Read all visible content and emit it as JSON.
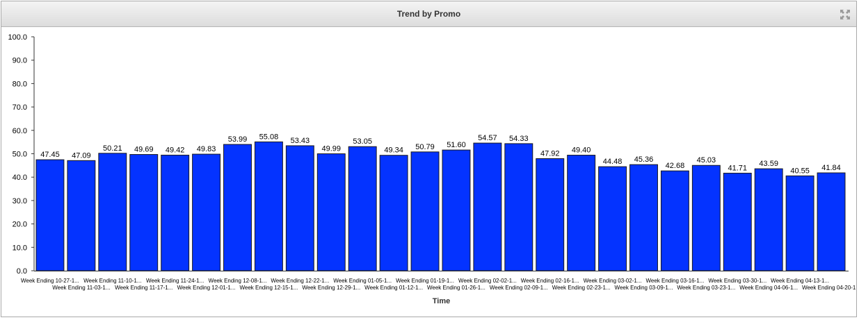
{
  "panel": {
    "title": "Trend by Promo"
  },
  "icons": {
    "collapse": "collapse-arrows-icon"
  },
  "colors": {
    "bar": "#0433ff",
    "bar_stroke": "#1a1a1a",
    "axis": "#333333"
  },
  "chart_data": {
    "type": "bar",
    "title": "Trend by Promo",
    "xlabel": "Time",
    "ylabel": "",
    "ylim": [
      0,
      100
    ],
    "yticks": [
      "0.0",
      "10.0",
      "20.0",
      "30.0",
      "40.0",
      "50.0",
      "60.0",
      "70.0",
      "80.0",
      "90.0",
      "100.0"
    ],
    "grid": false,
    "legend": "none",
    "categories": [
      "Week Ending 10-27-1...",
      "Week Ending 11-03-1...",
      "Week Ending 11-10-1...",
      "Week Ending 11-17-1...",
      "Week Ending 11-24-1...",
      "Week Ending 12-01-1...",
      "Week Ending 12-08-1...",
      "Week Ending 12-15-1...",
      "Week Ending 12-22-1...",
      "Week Ending 12-29-1...",
      "Week Ending 01-05-1...",
      "Week Ending 01-12-1...",
      "Week Ending 01-19-1...",
      "Week Ending 01-26-1...",
      "Week Ending 02-02-1...",
      "Week Ending 02-09-1...",
      "Week Ending 02-16-1...",
      "Week Ending 02-23-1...",
      "Week Ending 03-02-1...",
      "Week Ending 03-09-1...",
      "Week Ending 03-16-1...",
      "Week Ending 03-23-1...",
      "Week Ending 03-30-1...",
      "Week Ending 04-06-1...",
      "Week Ending 04-13-1...",
      "Week Ending 04-20-1..."
    ],
    "values": [
      47.45,
      47.09,
      50.21,
      49.69,
      49.42,
      49.83,
      53.99,
      55.08,
      53.43,
      49.99,
      53.05,
      49.34,
      50.79,
      51.6,
      54.57,
      54.33,
      47.92,
      49.4,
      44.48,
      45.36,
      42.68,
      45.03,
      41.71,
      43.59,
      40.55,
      41.84
    ],
    "value_labels": [
      "47.45",
      "47.09",
      "50.21",
      "49.69",
      "49.42",
      "49.83",
      "53.99",
      "55.08",
      "53.43",
      "49.99",
      "53.05",
      "49.34",
      "50.79",
      "51.60",
      "54.57",
      "54.33",
      "47.92",
      "49.40",
      "44.48",
      "45.36",
      "42.68",
      "45.03",
      "41.71",
      "43.59",
      "40.55",
      "41.84"
    ]
  }
}
